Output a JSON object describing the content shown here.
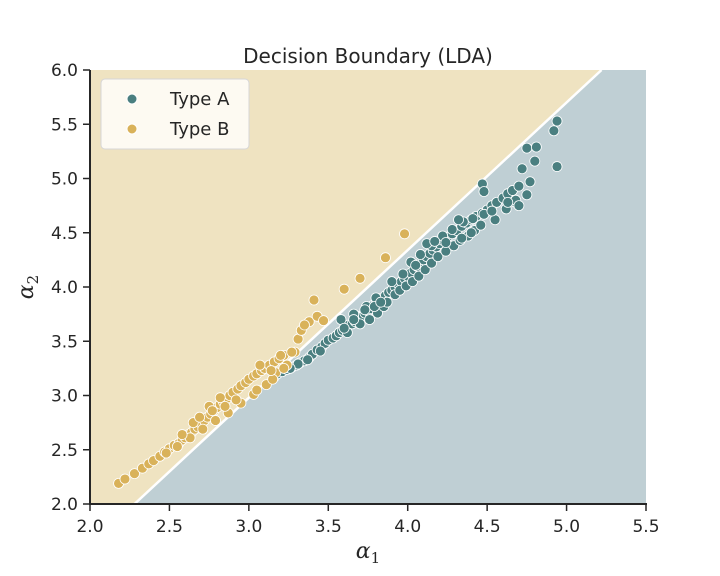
{
  "chart_data": {
    "type": "scatter",
    "title": "Decision Boundary (LDA)",
    "xlabel": "α",
    "xlabel_sub": "1",
    "ylabel": "α",
    "ylabel_sub": "2",
    "xlim": [
      2.0,
      5.5
    ],
    "ylim": [
      2.0,
      6.0
    ],
    "xticks": [
      "2.0",
      "2.5",
      "3.0",
      "3.5",
      "4.0",
      "4.5",
      "5.0",
      "5.5"
    ],
    "yticks": [
      "2.0",
      "2.5",
      "3.0",
      "3.5",
      "4.0",
      "4.5",
      "5.0",
      "5.5",
      "6.0"
    ],
    "legend_position": "top-left",
    "grid": false,
    "boundary": {
      "x": [
        2.28,
        5.22
      ],
      "y": [
        2.0,
        6.0
      ]
    },
    "regions": [
      {
        "name": "Type B",
        "side": "above",
        "color": "#efe3c1"
      },
      {
        "name": "Type A",
        "side": "below",
        "color": "#bfcfd4"
      }
    ],
    "series": [
      {
        "name": "Type A",
        "color": "#4a7f80",
        "points": [
          [
            3.16,
            3.17
          ],
          [
            3.18,
            3.2
          ],
          [
            3.21,
            3.22
          ],
          [
            3.24,
            3.24
          ],
          [
            3.27,
            3.26
          ],
          [
            3.3,
            3.28
          ],
          [
            3.32,
            3.3
          ],
          [
            3.35,
            3.32
          ],
          [
            3.38,
            3.35
          ],
          [
            3.4,
            3.38
          ],
          [
            3.43,
            3.42
          ],
          [
            3.46,
            3.45
          ],
          [
            3.48,
            3.48
          ],
          [
            3.5,
            3.51
          ],
          [
            3.53,
            3.53
          ],
          [
            3.55,
            3.55
          ],
          [
            3.57,
            3.58
          ],
          [
            3.59,
            3.6
          ],
          [
            3.61,
            3.63
          ],
          [
            3.63,
            3.65
          ],
          [
            3.65,
            3.66
          ],
          [
            3.67,
            3.68
          ],
          [
            3.68,
            3.72
          ],
          [
            3.7,
            3.73
          ],
          [
            3.72,
            3.74
          ],
          [
            3.73,
            3.76
          ],
          [
            3.75,
            3.78
          ],
          [
            3.77,
            3.8
          ],
          [
            3.78,
            3.83
          ],
          [
            3.8,
            3.85
          ],
          [
            3.82,
            3.87
          ],
          [
            3.84,
            3.9
          ],
          [
            3.86,
            3.92
          ],
          [
            3.88,
            3.95
          ],
          [
            3.9,
            3.97
          ],
          [
            3.92,
            4.0
          ],
          [
            3.94,
            4.03
          ],
          [
            3.96,
            4.05
          ],
          [
            3.98,
            4.08
          ],
          [
            4.0,
            4.1
          ],
          [
            4.02,
            4.13
          ],
          [
            4.04,
            4.16
          ],
          [
            4.06,
            4.19
          ],
          [
            4.08,
            4.22
          ],
          [
            4.1,
            4.25
          ],
          [
            4.12,
            4.28
          ],
          [
            4.14,
            4.31
          ],
          [
            4.16,
            4.34
          ],
          [
            4.18,
            4.37
          ],
          [
            4.2,
            4.4
          ],
          [
            4.22,
            4.43
          ],
          [
            4.25,
            4.46
          ],
          [
            4.28,
            4.49
          ],
          [
            4.31,
            4.52
          ],
          [
            4.34,
            4.56
          ],
          [
            4.37,
            4.59
          ],
          [
            4.4,
            4.62
          ],
          [
            4.43,
            4.65
          ],
          [
            4.47,
            4.68
          ],
          [
            4.5,
            4.71
          ],
          [
            4.53,
            4.75
          ],
          [
            4.56,
            4.78
          ],
          [
            4.6,
            4.82
          ],
          [
            4.63,
            4.86
          ],
          [
            4.66,
            4.89
          ],
          [
            4.7,
            4.93
          ],
          [
            3.37,
            3.33
          ],
          [
            3.45,
            3.41
          ],
          [
            3.62,
            3.58
          ],
          [
            3.7,
            3.66
          ],
          [
            3.76,
            3.7
          ],
          [
            3.81,
            3.76
          ],
          [
            3.85,
            3.82
          ],
          [
            3.87,
            3.86
          ],
          [
            3.92,
            3.93
          ],
          [
            3.95,
            3.97
          ],
          [
            3.99,
            4.01
          ],
          [
            4.03,
            4.05
          ],
          [
            4.07,
            4.1
          ],
          [
            4.11,
            4.16
          ],
          [
            4.15,
            4.22
          ],
          [
            4.19,
            4.28
          ],
          [
            4.24,
            4.33
          ],
          [
            4.29,
            4.38
          ],
          [
            4.33,
            4.43
          ],
          [
            4.38,
            4.47
          ],
          [
            4.42,
            4.52
          ],
          [
            4.46,
            4.57
          ],
          [
            4.55,
            4.62
          ],
          [
            4.62,
            4.72
          ],
          [
            4.68,
            4.78
          ],
          [
            4.75,
            4.85
          ],
          [
            4.02,
            4.23
          ],
          [
            4.08,
            4.3
          ],
          [
            4.15,
            4.38
          ],
          [
            4.22,
            4.47
          ],
          [
            4.28,
            4.53
          ],
          [
            4.35,
            4.6
          ],
          [
            4.41,
            4.63
          ],
          [
            4.48,
            4.67
          ],
          [
            4.53,
            4.7
          ],
          [
            3.58,
            3.7
          ],
          [
            3.66,
            3.75
          ],
          [
            3.74,
            3.82
          ],
          [
            3.8,
            3.9
          ],
          [
            3.9,
            4.05
          ],
          [
            3.97,
            4.12
          ],
          [
            4.05,
            4.2
          ],
          [
            4.47,
            4.95
          ],
          [
            4.48,
            4.88
          ],
          [
            4.72,
            5.09
          ],
          [
            4.75,
            5.28
          ],
          [
            4.77,
            4.97
          ],
          [
            4.8,
            5.16
          ],
          [
            4.81,
            5.29
          ],
          [
            4.92,
            5.44
          ],
          [
            4.94,
            5.53
          ],
          [
            4.94,
            5.11
          ],
          [
            4.68,
            4.8
          ],
          [
            4.7,
            4.75
          ],
          [
            4.63,
            4.78
          ],
          [
            3.31,
            3.29
          ],
          [
            3.26,
            3.25
          ],
          [
            3.6,
            3.62
          ],
          [
            3.66,
            3.7
          ],
          [
            3.73,
            3.79
          ],
          [
            3.79,
            3.82
          ],
          [
            3.83,
            3.86
          ],
          [
            4.12,
            4.4
          ],
          [
            4.17,
            4.42
          ],
          [
            4.24,
            4.41
          ],
          [
            4.34,
            4.45
          ],
          [
            4.4,
            4.5
          ],
          [
            4.32,
            4.62
          ]
        ]
      },
      {
        "name": "Type B",
        "color": "#d9b25a",
        "points": [
          [
            2.18,
            2.19
          ],
          [
            2.22,
            2.23
          ],
          [
            2.28,
            2.28
          ],
          [
            2.33,
            2.33
          ],
          [
            2.37,
            2.37
          ],
          [
            2.4,
            2.4
          ],
          [
            2.44,
            2.44
          ],
          [
            2.47,
            2.48
          ],
          [
            2.5,
            2.51
          ],
          [
            2.53,
            2.54
          ],
          [
            2.56,
            2.56
          ],
          [
            2.58,
            2.59
          ],
          [
            2.6,
            2.61
          ],
          [
            2.62,
            2.64
          ],
          [
            2.64,
            2.66
          ],
          [
            2.66,
            2.69
          ],
          [
            2.68,
            2.71
          ],
          [
            2.7,
            2.74
          ],
          [
            2.72,
            2.77
          ],
          [
            2.74,
            2.8
          ],
          [
            2.76,
            2.83
          ],
          [
            2.78,
            2.86
          ],
          [
            2.8,
            2.89
          ],
          [
            2.82,
            2.92
          ],
          [
            2.84,
            2.94
          ],
          [
            2.86,
            2.97
          ],
          [
            2.88,
            3.0
          ],
          [
            2.9,
            3.03
          ],
          [
            2.93,
            3.06
          ],
          [
            2.95,
            3.09
          ],
          [
            2.98,
            3.12
          ],
          [
            3.0,
            3.15
          ],
          [
            3.03,
            3.18
          ],
          [
            3.05,
            3.2
          ],
          [
            3.08,
            3.23
          ],
          [
            3.1,
            3.25
          ],
          [
            3.13,
            3.28
          ],
          [
            3.16,
            3.31
          ],
          [
            3.19,
            3.34
          ],
          [
            3.22,
            3.37
          ],
          [
            2.48,
            2.47
          ],
          [
            2.55,
            2.53
          ],
          [
            2.63,
            2.61
          ],
          [
            2.71,
            2.69
          ],
          [
            2.79,
            2.77
          ],
          [
            2.87,
            2.84
          ],
          [
            2.95,
            2.93
          ],
          [
            3.03,
            3.01
          ],
          [
            3.11,
            3.1
          ],
          [
            3.17,
            3.21
          ],
          [
            3.24,
            3.28
          ],
          [
            3.29,
            3.4
          ],
          [
            3.31,
            3.52
          ],
          [
            3.33,
            3.6
          ],
          [
            3.38,
            3.68
          ],
          [
            3.43,
            3.73
          ],
          [
            3.47,
            3.69
          ],
          [
            3.41,
            3.88
          ],
          [
            3.6,
            3.98
          ],
          [
            3.7,
            4.08
          ],
          [
            3.86,
            4.27
          ],
          [
            3.98,
            4.49
          ],
          [
            2.65,
            2.75
          ],
          [
            2.75,
            2.9
          ],
          [
            2.82,
            2.98
          ],
          [
            2.92,
            2.96
          ],
          [
            3.05,
            3.05
          ],
          [
            3.15,
            3.15
          ],
          [
            3.22,
            3.25
          ],
          [
            3.2,
            3.37
          ],
          [
            3.27,
            3.4
          ],
          [
            3.35,
            3.65
          ],
          [
            2.58,
            2.64
          ],
          [
            2.69,
            2.8
          ],
          [
            2.77,
            2.86
          ],
          [
            2.85,
            2.9
          ],
          [
            3.07,
            3.28
          ],
          [
            3.14,
            3.23
          ]
        ]
      }
    ]
  }
}
